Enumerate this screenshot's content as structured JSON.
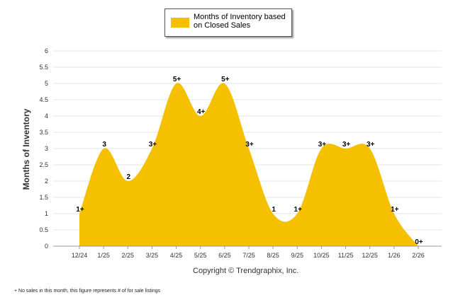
{
  "legend": {
    "label_line1": "Months of Inventory based",
    "label_line2": "on Closed Sales"
  },
  "copyright": "Copyright © Trendgraphix, Inc.",
  "footnote": "+  No sales in this month, this figure represents # of for sale listings",
  "colors": {
    "fill": "#F5C000",
    "grid": "#e6e6e6",
    "axis": "#999999"
  },
  "chart_data": {
    "type": "area",
    "title": "",
    "ylabel": "Months of Inventory",
    "xlabel": "",
    "ylim": [
      0,
      6
    ],
    "yticks": [
      "0",
      "0.5",
      "1",
      "1.5",
      "2",
      "2.5",
      "3",
      "3.5",
      "4",
      "4.5",
      "5",
      "5.5",
      "6"
    ],
    "categories": [
      "12/24",
      "1/25",
      "2/25",
      "3/25",
      "4/25",
      "5/25",
      "6/25",
      "7/25",
      "8/25",
      "9/25",
      "10/25",
      "11/25",
      "12/25",
      "1/26",
      "2/26"
    ],
    "series": [
      {
        "name": "Months of Inventory based on Closed Sales",
        "values": [
          1,
          3,
          2,
          3,
          5,
          4,
          5,
          3,
          1,
          1,
          3,
          3,
          3,
          1,
          0
        ],
        "labels": [
          "1+",
          "3",
          "2",
          "3+",
          "5+",
          "4+",
          "5+",
          "3+",
          "1",
          "1+",
          "3+",
          "3+",
          "3+",
          "1+",
          "0+"
        ]
      }
    ]
  }
}
